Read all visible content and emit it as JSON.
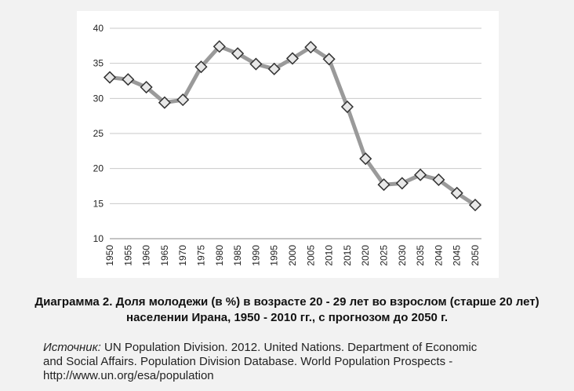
{
  "chart_data": {
    "type": "line",
    "title": "",
    "xlabel": "",
    "ylabel": "",
    "ylim": [
      10,
      40
    ],
    "yticks": [
      "10",
      "15",
      "20",
      "25",
      "30",
      "35",
      "40"
    ],
    "categories": [
      "1950",
      "1955",
      "1960",
      "1965",
      "1970",
      "1975",
      "1980",
      "1985",
      "1990",
      "1995",
      "2000",
      "2005",
      "2010",
      "2015",
      "2020",
      "2025",
      "2030",
      "2035",
      "2040",
      "2045",
      "2050"
    ],
    "series": [
      {
        "values": [
          33.0,
          32.7,
          31.6,
          29.4,
          29.8,
          34.5,
          37.4,
          36.4,
          34.9,
          34.2,
          35.7,
          37.3,
          35.6,
          28.8,
          21.4,
          17.7,
          17.9,
          19.1,
          18.4,
          16.5,
          14.8
        ]
      }
    ],
    "grid": "horizontal",
    "colors": {
      "line": "#9a9a9a",
      "marker_fill": "#e8e8e8",
      "marker_stroke": "#333333",
      "grid": "#c9c9c9"
    }
  },
  "caption": {
    "line1": "Диаграмма 2. Доля молодежи (в %) в возрасте 20 - 29 лет во взрослом (старше 20 лет)",
    "line2": "населении Ирана, 1950 - 2010 гг., с прогнозом до 2050 г."
  },
  "source": {
    "label": "Источник:",
    "line1": " UN Population Division. 2012. United Nations. Department of Economic",
    "line2": "and Social Affairs. Population Division Database. World Population Prospects -",
    "line3": "http://www.un.org/esa/population"
  }
}
